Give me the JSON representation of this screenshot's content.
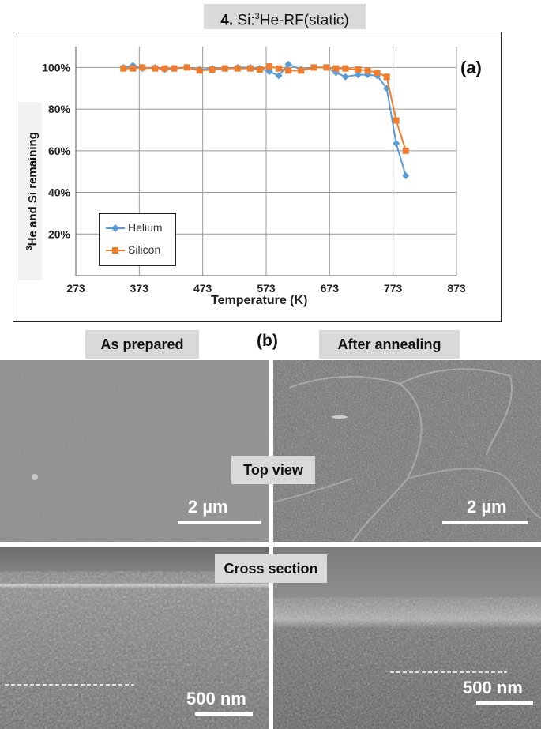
{
  "figure": {
    "title_number": "4.",
    "title_prefix": "Si:",
    "title_sup": "3",
    "title_suffix": "He-RF(static)",
    "panel_a_label": "(a)",
    "panel_b_label": "(b)"
  },
  "chart_data": {
    "type": "line",
    "xlabel": "Temperature (K)",
    "ylabel_sup": "3",
    "ylabel": "He and Si remaining",
    "xlim": [
      273,
      873
    ],
    "ylim": [
      0,
      110
    ],
    "x_ticks": [
      273,
      373,
      473,
      573,
      673,
      773,
      873
    ],
    "y_ticks": [
      20,
      40,
      60,
      80,
      100
    ],
    "y_tick_labels": [
      "20%",
      "40%",
      "60%",
      "80%",
      "100%"
    ],
    "grid": true,
    "legend_position": "bottom-left",
    "series": [
      {
        "name": "Helium",
        "color": "#5b9bd5",
        "marker": "diamond",
        "x": [
          348,
          363,
          378,
          398,
          413,
          428,
          448,
          468,
          488,
          508,
          528,
          548,
          563,
          578,
          593,
          608,
          628,
          648,
          668,
          683,
          698,
          718,
          733,
          748,
          763,
          778,
          793
        ],
        "y": [
          100,
          101,
          99.5,
          100,
          99,
          99.5,
          100,
          99,
          99.5,
          99.5,
          100,
          100,
          99.5,
          98,
          96,
          101.5,
          99,
          100,
          100,
          97.5,
          95.5,
          96.5,
          96.5,
          96,
          90,
          63.5,
          48
        ]
      },
      {
        "name": "Silicon",
        "color": "#ed7d31",
        "marker": "square",
        "x": [
          348,
          363,
          378,
          398,
          413,
          428,
          448,
          468,
          488,
          508,
          528,
          548,
          563,
          578,
          593,
          608,
          628,
          648,
          668,
          683,
          698,
          718,
          733,
          748,
          763,
          778,
          793
        ],
        "y": [
          99.5,
          99.5,
          100,
          99.5,
          99.5,
          99.5,
          100,
          98.5,
          99,
          99.5,
          99.5,
          99.5,
          99,
          100.5,
          99.5,
          98.5,
          98.5,
          100,
          100,
          99.5,
          99.5,
          99,
          98.5,
          97.5,
          95.5,
          74.5,
          60
        ]
      }
    ]
  },
  "micrographs": {
    "col_left": "As prepared",
    "col_right": "After annealing",
    "row_top": "Top view",
    "row_bottom": "Cross section",
    "scale_top_left": "2 µm",
    "scale_top_right": "2 µm",
    "scale_bottom_left": "500 nm",
    "scale_bottom_right": "500 nm"
  }
}
